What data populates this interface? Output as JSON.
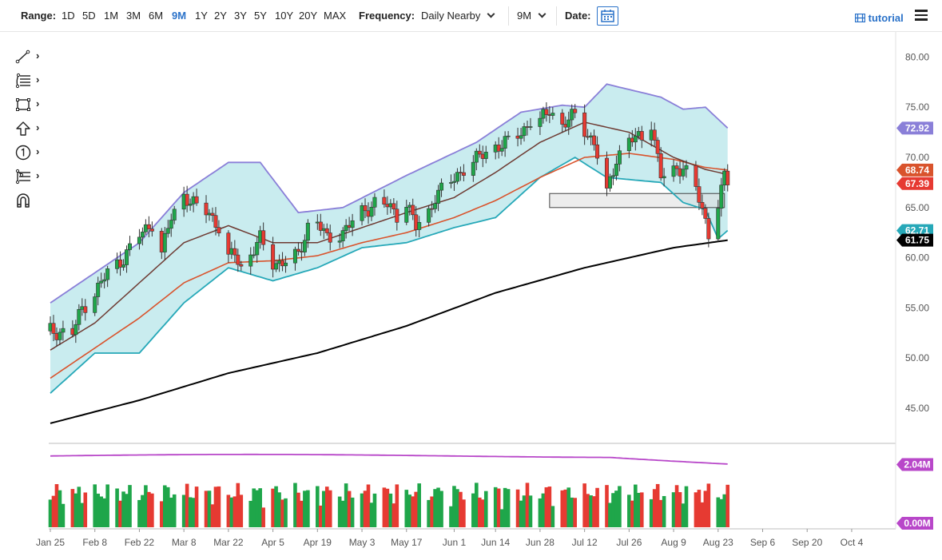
{
  "toolbar": {
    "range_label": "Range:",
    "ranges": [
      "1D",
      "5D",
      "1M",
      "3M",
      "6M",
      "9M",
      "1Y",
      "2Y",
      "3Y",
      "5Y",
      "10Y",
      "20Y",
      "MAX"
    ],
    "active_range": "9M",
    "frequency_label": "Frequency:",
    "frequency_value": "Daily Nearby",
    "period_value": "9M",
    "date_label": "Date:",
    "tutorial_label": "tutorial",
    "icons": {
      "calendar": "calendar-icon",
      "tutorial": "film-icon",
      "menu": "hamburger-menu-icon"
    }
  },
  "drawing_tools": [
    {
      "name": "trendline-tool",
      "icon": "line-icon"
    },
    {
      "name": "fibonacci-tool",
      "icon": "fib-levels-icon"
    },
    {
      "name": "rectangle-tool",
      "icon": "rectangle-icon"
    },
    {
      "name": "arrow-tool",
      "icon": "up-arrow-icon"
    },
    {
      "name": "counter-tool",
      "icon": "number-one-icon"
    },
    {
      "name": "pitchfork-tool",
      "icon": "pitchfork-icon"
    },
    {
      "name": "magnet-tool",
      "icon": "magnet-icon"
    }
  ],
  "chart_data": {
    "type": "candlestick",
    "x_tick_labels": [
      "Jan 25",
      "Feb 8",
      "Feb 22",
      "Mar 8",
      "Mar 22",
      "Apr 5",
      "Apr 19",
      "May 3",
      "May 17",
      "Jun 1",
      "Jun 14",
      "Jun 28",
      "Jul 12",
      "Jul 26",
      "Aug 9",
      "Aug 23",
      "Sep 6",
      "Sep 20",
      "Oct 4"
    ],
    "y_ticks": [
      "80.00",
      "75.00",
      "70.00",
      "65.00",
      "60.00",
      "55.00",
      "50.00",
      "45.00"
    ],
    "ylim": [
      41.5,
      82.5
    ],
    "last_values": [
      {
        "label": "72.92",
        "color": "#8a7fd8"
      },
      {
        "label": "68.74",
        "color": "#d9532c"
      },
      {
        "label": "67.39",
        "color": "#e63a32"
      },
      {
        "label": "62.71",
        "color": "#26a8b8"
      },
      {
        "label": "61.75",
        "color": "#000000"
      }
    ],
    "volume": {
      "ylim": [
        0,
        2.6
      ],
      "tick_labels": [
        "2.04M",
        "0.00M"
      ],
      "tag_color": "#b847c9",
      "ma_color": "#b847c9",
      "up_color": "#1fa64a",
      "down_color": "#e63a32"
    },
    "series_colors": {
      "up_candle": "#1fa64a",
      "down_candle": "#e63a32",
      "bollinger_band": "#8a7fd8",
      "bollinger_lower": "#26a8b8",
      "bollinger_fill": "#c9ecef",
      "ma_short": "#6e3a32",
      "ma_mid": "#d9532c",
      "ma_long": "#000000",
      "zone_box": "#dedede"
    },
    "zone_box": {
      "start": "Jul 1",
      "end": "Aug 25",
      "low": 65.0,
      "high": 66.4
    },
    "close_anchors": [
      [
        "Jan 25",
        52.7
      ],
      [
        "Feb 1",
        52.5
      ],
      [
        "Feb 4",
        55.0
      ],
      [
        "Feb 8",
        56.5
      ],
      [
        "Feb 12",
        58.5
      ],
      [
        "Feb 17",
        60.0
      ],
      [
        "Feb 22",
        62.2
      ],
      [
        "Feb 26",
        63.5
      ],
      [
        "Mar 1",
        60.5
      ],
      [
        "Mar 4",
        64.0
      ],
      [
        "Mar 8",
        66.3
      ],
      [
        "Mar 12",
        65.0
      ],
      [
        "Mar 16",
        64.5
      ],
      [
        "Mar 19",
        63.0
      ],
      [
        "Mar 22",
        59.8
      ],
      [
        "Mar 24",
        60.5
      ],
      [
        "Mar 26",
        59.0
      ],
      [
        "Apr 1",
        61.8
      ],
      [
        "Apr 5",
        59.5
      ],
      [
        "Apr 9",
        59.6
      ],
      [
        "Apr 13",
        60.2
      ],
      [
        "Apr 16",
        63.2
      ],
      [
        "Apr 19",
        63.6
      ],
      [
        "Apr 22",
        61.8
      ],
      [
        "Apr 27",
        62.6
      ],
      [
        "May 3",
        64.5
      ],
      [
        "May 7",
        65.5
      ],
      [
        "May 11",
        65.2
      ],
      [
        "May 14",
        64.3
      ],
      [
        "May 17",
        65.6
      ],
      [
        "May 20",
        63.0
      ],
      [
        "May 24",
        64.5
      ],
      [
        "May 26",
        66.2
      ],
      [
        "Jun 1",
        67.8
      ],
      [
        "Jun 4",
        69.0
      ],
      [
        "Jun 8",
        69.8
      ],
      [
        "Jun 11",
        70.5
      ],
      [
        "Jun 14",
        71.1
      ],
      [
        "Jun 18",
        71.5
      ],
      [
        "Jun 22",
        72.5
      ],
      [
        "Jun 25",
        73.6
      ],
      [
        "Jun 28",
        73.5
      ],
      [
        "Jul 1",
        74.8
      ],
      [
        "Jul 5",
        73.2
      ],
      [
        "Jul 9",
        74.2
      ],
      [
        "Jul 12",
        72.8
      ],
      [
        "Jul 15",
        71.4
      ],
      [
        "Jul 19",
        66.3
      ],
      [
        "Jul 22",
        70.0
      ],
      [
        "Jul 26",
        71.7
      ],
      [
        "Jul 30",
        72.0
      ],
      [
        "Aug 2",
        73.6
      ],
      [
        "Aug 5",
        68.0
      ],
      [
        "Aug 9",
        68.6
      ],
      [
        "Aug 12",
        69.2
      ],
      [
        "Aug 16",
        66.8
      ],
      [
        "Aug 19",
        63.6
      ],
      [
        "Aug 20",
        62.5
      ],
      [
        "Aug 23",
        65.6
      ],
      [
        "Aug 25",
        68.0
      ],
      [
        "Aug 26",
        67.4
      ]
    ],
    "indicator_anchors": {
      "bollinger_upper": [
        [
          "Jan 25",
          55.5
        ],
        [
          "Feb 22",
          61.5
        ],
        [
          "Mar 8",
          66.5
        ],
        [
          "Mar 22",
          69.5
        ],
        [
          "Apr 1",
          69.5
        ],
        [
          "Apr 13",
          64.5
        ],
        [
          "Apr 27",
          65.0
        ],
        [
          "May 17",
          68.2
        ],
        [
          "Jun 8",
          71.5
        ],
        [
          "Jun 22",
          74.5
        ],
        [
          "Jul 5",
          75.2
        ],
        [
          "Jul 12",
          75.0
        ],
        [
          "Jul 19",
          77.3
        ],
        [
          "Aug 5",
          76.0
        ],
        [
          "Aug 12",
          74.8
        ],
        [
          "Aug 19",
          75.0
        ],
        [
          "Aug 26",
          72.92
        ]
      ],
      "bollinger_lower": [
        [
          "Jan 25",
          46.5
        ],
        [
          "Feb 8",
          50.5
        ],
        [
          "Feb 22",
          50.5
        ],
        [
          "Mar 8",
          55.5
        ],
        [
          "Mar 22",
          59.0
        ],
        [
          "Apr 5",
          57.7
        ],
        [
          "Apr 19",
          59.0
        ],
        [
          "May 3",
          61.0
        ],
        [
          "May 17",
          61.5
        ],
        [
          "Jun 1",
          63.0
        ],
        [
          "Jun 14",
          64.0
        ],
        [
          "Jun 28",
          68.0
        ],
        [
          "Jul 9",
          70.0
        ],
        [
          "Jul 19",
          68.0
        ],
        [
          "Aug 5",
          67.5
        ],
        [
          "Aug 12",
          65.5
        ],
        [
          "Aug 19",
          64.8
        ],
        [
          "Aug 23",
          61.9
        ],
        [
          "Aug 26",
          62.71
        ]
      ],
      "ma_short": [
        [
          "Jan 25",
          50.8
        ],
        [
          "Feb 8",
          53.5
        ],
        [
          "Feb 22",
          57.5
        ],
        [
          "Mar 8",
          61.5
        ],
        [
          "Mar 22",
          63.2
        ],
        [
          "Apr 5",
          61.5
        ],
        [
          "Apr 19",
          61.5
        ],
        [
          "May 3",
          63.0
        ],
        [
          "May 17",
          64.5
        ],
        [
          "Jun 1",
          66.0
        ],
        [
          "Jun 14",
          68.5
        ],
        [
          "Jun 28",
          71.5
        ],
        [
          "Jul 12",
          73.5
        ],
        [
          "Jul 26",
          72.5
        ],
        [
          "Aug 9",
          70.0
        ],
        [
          "Aug 19",
          68.8
        ],
        [
          "Aug 26",
          68.3
        ]
      ],
      "ma_mid": [
        [
          "Jan 25",
          48.0
        ],
        [
          "Feb 8",
          51.0
        ],
        [
          "Feb 22",
          54.0
        ],
        [
          "Mar 8",
          57.5
        ],
        [
          "Mar 22",
          59.5
        ],
        [
          "Apr 5",
          59.7
        ],
        [
          "Apr 19",
          60.2
        ],
        [
          "May 3",
          61.5
        ],
        [
          "May 17",
          62.5
        ],
        [
          "Jun 1",
          64.0
        ],
        [
          "Jun 14",
          65.7
        ],
        [
          "Jun 28",
          68.0
        ],
        [
          "Jul 12",
          70.0
        ],
        [
          "Jul 26",
          70.4
        ],
        [
          "Aug 9",
          69.8
        ],
        [
          "Aug 19",
          69.0
        ],
        [
          "Aug 26",
          68.74
        ]
      ],
      "ma_long": [
        [
          "Jan 25",
          43.5
        ],
        [
          "Feb 22",
          45.8
        ],
        [
          "Mar 22",
          48.5
        ],
        [
          "Apr 19",
          50.5
        ],
        [
          "May 17",
          53.2
        ],
        [
          "Jun 14",
          56.5
        ],
        [
          "Jul 12",
          59.0
        ],
        [
          "Aug 9",
          61.0
        ],
        [
          "Aug 26",
          61.75
        ]
      ]
    }
  }
}
